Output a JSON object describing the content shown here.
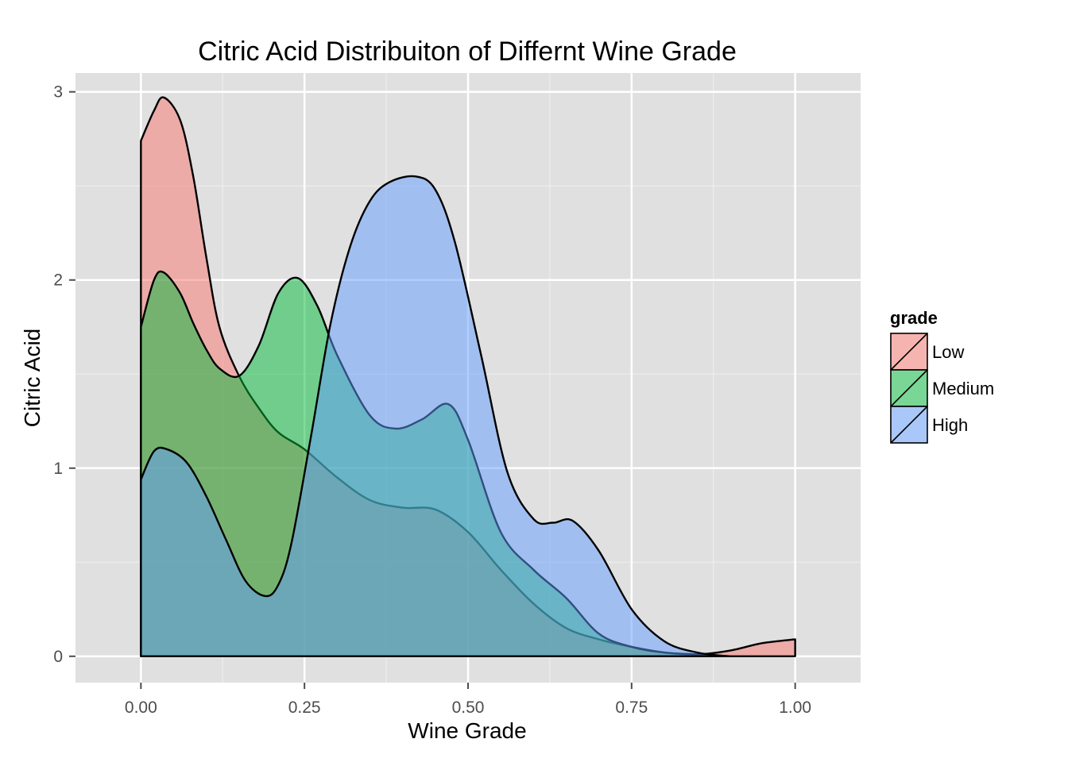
{
  "chart_data": {
    "type": "area",
    "title": "Citric Acid Distribuiton of Differnt Wine Grade",
    "xlabel": "Wine Grade",
    "ylabel": "Citric Acid",
    "xlim": [
      -0.1,
      1.1
    ],
    "ylim": [
      -0.14,
      3.1
    ],
    "x_ticks": [
      0,
      0.25,
      0.5,
      0.75,
      1.0
    ],
    "x_tick_labels": [
      "0.00",
      "0.25",
      "0.50",
      "0.75",
      "1.00"
    ],
    "y_ticks": [
      0,
      1,
      2,
      3
    ],
    "y_tick_labels": [
      "0",
      "1",
      "2",
      "3"
    ],
    "grid": true,
    "background": "#e0e0e0",
    "legend": {
      "title": "grade",
      "placement": "right"
    },
    "series": [
      {
        "name": "Low",
        "color": "#F8766D",
        "x": [
          0,
          0.02,
          0.035,
          0.06,
          0.08,
          0.1,
          0.12,
          0.15,
          0.18,
          0.21,
          0.25,
          0.3,
          0.35,
          0.4,
          0.45,
          0.5,
          0.55,
          0.6,
          0.65,
          0.7,
          0.75,
          0.8,
          0.85,
          0.9,
          0.95,
          1.0
        ],
        "y": [
          2.74,
          2.9,
          2.97,
          2.85,
          2.55,
          2.12,
          1.75,
          1.49,
          1.32,
          1.19,
          1.1,
          0.95,
          0.83,
          0.79,
          0.78,
          0.66,
          0.46,
          0.28,
          0.15,
          0.09,
          0.05,
          0.02,
          0.01,
          0.03,
          0.07,
          0.09
        ]
      },
      {
        "name": "Medium",
        "color": "#00BA38",
        "x": [
          0,
          0.02,
          0.035,
          0.06,
          0.08,
          0.1,
          0.12,
          0.15,
          0.18,
          0.21,
          0.24,
          0.27,
          0.3,
          0.35,
          0.39,
          0.43,
          0.47,
          0.5,
          0.55,
          0.6,
          0.65,
          0.7,
          0.75,
          0.8,
          0.85,
          0.9
        ],
        "y": [
          1.75,
          2.0,
          2.04,
          1.93,
          1.77,
          1.63,
          1.53,
          1.49,
          1.65,
          1.93,
          2.01,
          1.86,
          1.6,
          1.28,
          1.21,
          1.26,
          1.34,
          1.15,
          0.66,
          0.46,
          0.31,
          0.12,
          0.05,
          0.02,
          0.01,
          0.0
        ]
      },
      {
        "name": "High",
        "color": "#619CFF",
        "x": [
          0,
          0.02,
          0.04,
          0.07,
          0.1,
          0.13,
          0.16,
          0.19,
          0.21,
          0.23,
          0.26,
          0.29,
          0.32,
          0.35,
          0.38,
          0.42,
          0.45,
          0.48,
          0.52,
          0.56,
          0.6,
          0.63,
          0.66,
          0.7,
          0.75,
          0.8,
          0.85,
          0.9
        ],
        "y": [
          0.94,
          1.09,
          1.1,
          1.03,
          0.85,
          0.62,
          0.4,
          0.32,
          0.38,
          0.6,
          1.17,
          1.77,
          2.18,
          2.42,
          2.52,
          2.55,
          2.48,
          2.2,
          1.6,
          0.98,
          0.73,
          0.71,
          0.72,
          0.56,
          0.25,
          0.08,
          0.02,
          0.0
        ]
      }
    ]
  }
}
